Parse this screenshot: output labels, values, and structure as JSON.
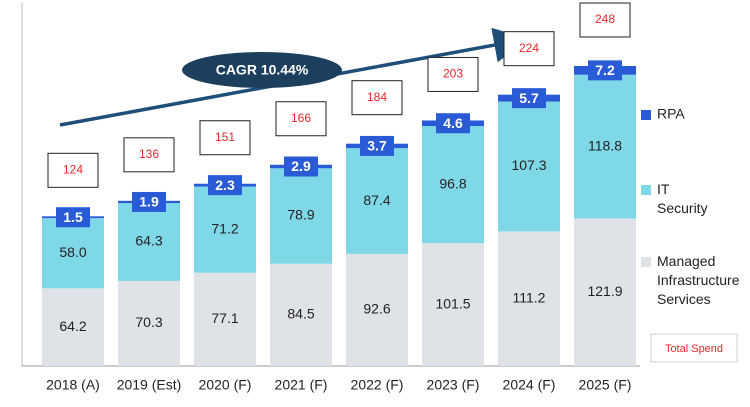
{
  "chart_data": {
    "type": "stacked_bar",
    "annotation": "CAGR 10.44%",
    "categories": [
      "2018 (A)",
      "2019 (Est)",
      "2020 (F)",
      "2021 (F)",
      "2022 (F)",
      "2023 (F)",
      "2024 (F)",
      "2025 (F)"
    ],
    "series": [
      {
        "name": "Managed Infrastructure Services",
        "color": "#dfe2e7",
        "values": [
          64.2,
          70.3,
          77.1,
          84.5,
          92.6,
          101.5,
          111.2,
          121.9
        ]
      },
      {
        "name": "IT Security",
        "color": "#7fd8e8",
        "values": [
          58.0,
          64.3,
          71.2,
          78.9,
          87.4,
          96.8,
          107.3,
          118.8
        ],
        "value_labels": [
          "58.0",
          "64.3",
          "71.2",
          "78.9",
          "87.4",
          "96.8",
          "107.3",
          "118.8"
        ]
      },
      {
        "name": "RPA",
        "color": "#2a5bd7",
        "values": [
          1.5,
          1.9,
          2.3,
          2.9,
          3.7,
          4.6,
          5.7,
          7.2
        ]
      }
    ],
    "totals_name": "Total Spend",
    "totals": [
      124,
      136,
      151,
      166,
      184,
      203,
      224,
      248
    ],
    "totals_color": "#e8262a"
  }
}
